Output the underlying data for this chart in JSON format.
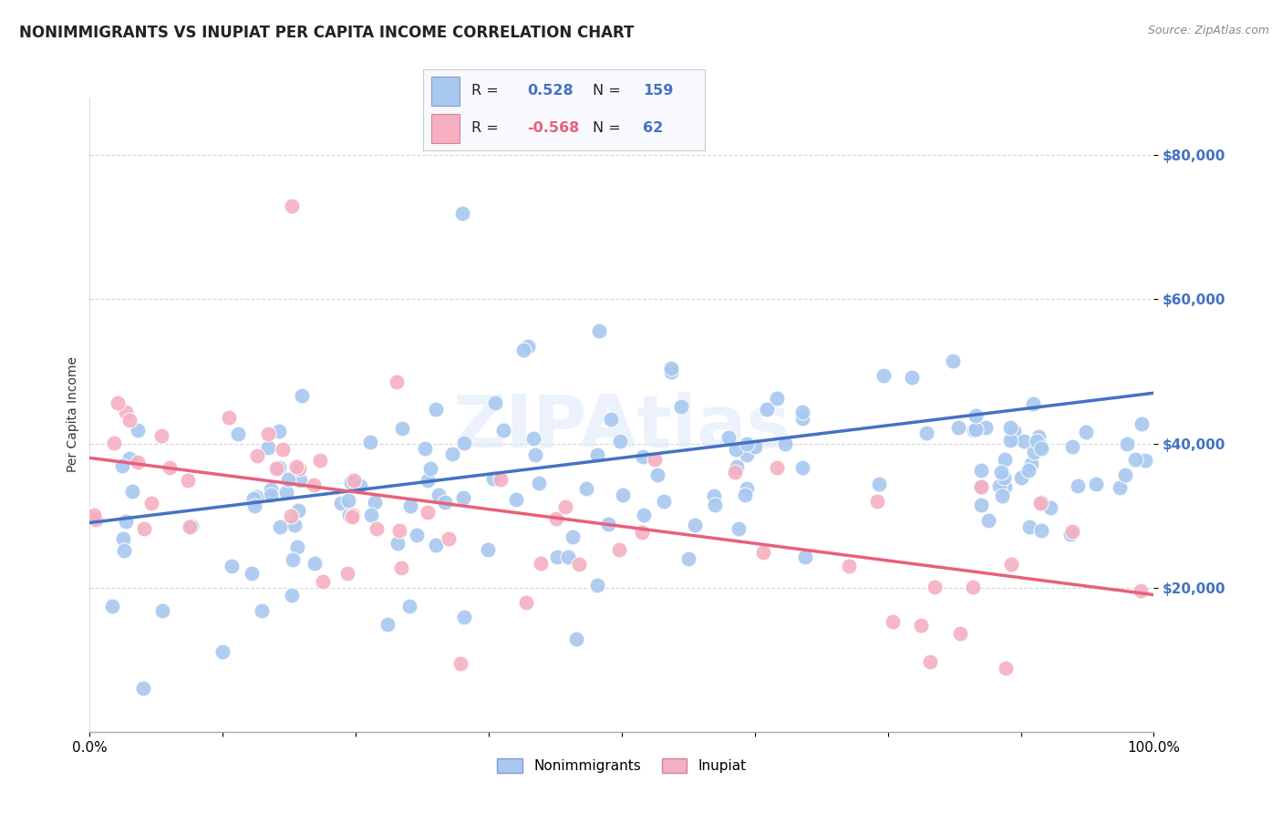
{
  "title": "NONIMMIGRANTS VS INUPIAT PER CAPITA INCOME CORRELATION CHART",
  "source": "Source: ZipAtlas.com",
  "ylabel": "Per Capita Income",
  "ytick_labels": [
    "$20,000",
    "$40,000",
    "$60,000",
    "$80,000"
  ],
  "ytick_values": [
    20000,
    40000,
    60000,
    80000
  ],
  "ylim": [
    0,
    88000
  ],
  "xlim": [
    0,
    1.0
  ],
  "nonimmigrant_color": "#a8c8f0",
  "inupiat_color": "#f5afc0",
  "nonimmigrant_line_color": "#4472c4",
  "inupiat_line_color": "#e8607a",
  "r_nonimmigrant": 0.528,
  "n_nonimmigrant": 159,
  "r_inupiat": -0.568,
  "n_inupiat": 62,
  "background_color": "#ffffff",
  "grid_color": "#cccccc",
  "watermark": "ZIPAtlas",
  "title_fontsize": 12,
  "source_fontsize": 9,
  "axis_label_fontsize": 10,
  "tick_fontsize": 11,
  "legend_fontsize": 12,
  "blue_line_x0": 0.0,
  "blue_line_y0": 29000,
  "blue_line_x1": 1.0,
  "blue_line_y1": 47000,
  "pink_line_x0": 0.0,
  "pink_line_y0": 38000,
  "pink_line_x1": 1.0,
  "pink_line_y1": 19000
}
